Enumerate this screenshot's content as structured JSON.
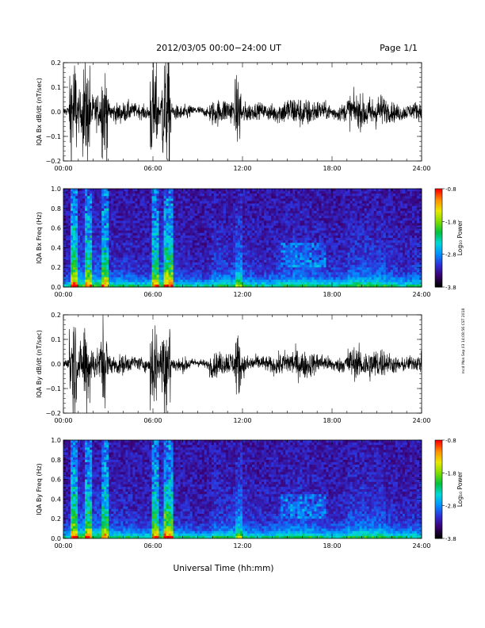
{
  "header": {
    "title": "2012/03/05  00:00−24:00 UT",
    "page": "Page 1/1"
  },
  "side_stamp": "mcd Mon Sep 03 14:08:56 CST 2018",
  "colorbar": {
    "label": "Log₁₀ Power",
    "ticks": [
      "-0.8",
      "-1.8",
      "-2.8",
      "-3.8"
    ],
    "colors": [
      "#000000",
      "#3a0070",
      "#2f2fd8",
      "#0090ff",
      "#00d8d8",
      "#00c040",
      "#7fdc00",
      "#e8e800",
      "#ff9000",
      "#ff0000"
    ]
  },
  "chart_data": [
    {
      "type": "line",
      "ylabel": "IQA Bx dB/dt (nT/sec)",
      "ylim": [
        -0.2,
        0.2
      ],
      "yticks": [
        "0.2",
        "0.1",
        "0.0",
        "−0.1",
        "−0.2"
      ],
      "xlim": [
        "00:00",
        "24:00"
      ],
      "xticks": [
        "00:00",
        "06:00",
        "12:00",
        "18:00",
        "24:00"
      ],
      "series": [
        {
          "values": "high-frequency pulsation signal, large bursts near 00:30–02:30 and 06:00–07:00, moderate activity 10:00–24:00"
        }
      ]
    },
    {
      "type": "heatmap",
      "ylabel": "IQA Bx Freq (Hz)",
      "ylim": [
        0.0,
        1.0
      ],
      "yticks": [
        "1.0",
        "0.8",
        "0.6",
        "0.4",
        "0.2",
        "0.0"
      ],
      "xlim": [
        "00:00",
        "24:00"
      ],
      "xticks": [
        "00:00",
        "06:00",
        "12:00",
        "18:00",
        "24:00"
      ],
      "zlim": [
        -3.8,
        -0.8
      ]
    },
    {
      "type": "line",
      "ylabel": "IQA By dB/dt (nT/sec)",
      "ylim": [
        -0.2,
        0.2
      ],
      "yticks": [
        "0.2",
        "0.1",
        "0.0",
        "−0.1",
        "−0.2"
      ],
      "xlim": [
        "00:00",
        "24:00"
      ],
      "xticks": [
        "00:00",
        "06:00",
        "12:00",
        "18:00",
        "24:00"
      ],
      "series": [
        {
          "values": "high-frequency pulsation signal, large bursts near 00:30–02:30 and 06:00–07:00, moderate activity 10:00–24:00"
        }
      ]
    },
    {
      "type": "heatmap",
      "ylabel": "IQA By Freq (Hz)",
      "ylim": [
        0.0,
        1.0
      ],
      "yticks": [
        "1.0",
        "0.8",
        "0.6",
        "0.4",
        "0.2",
        "0.0"
      ],
      "xlim": [
        "00:00",
        "24:00"
      ],
      "xticks": [
        "00:00",
        "06:00",
        "12:00",
        "18:00",
        "24:00"
      ],
      "zlim": [
        -3.8,
        -0.8
      ]
    }
  ],
  "xlabel": "Universal Time (hh:mm)"
}
